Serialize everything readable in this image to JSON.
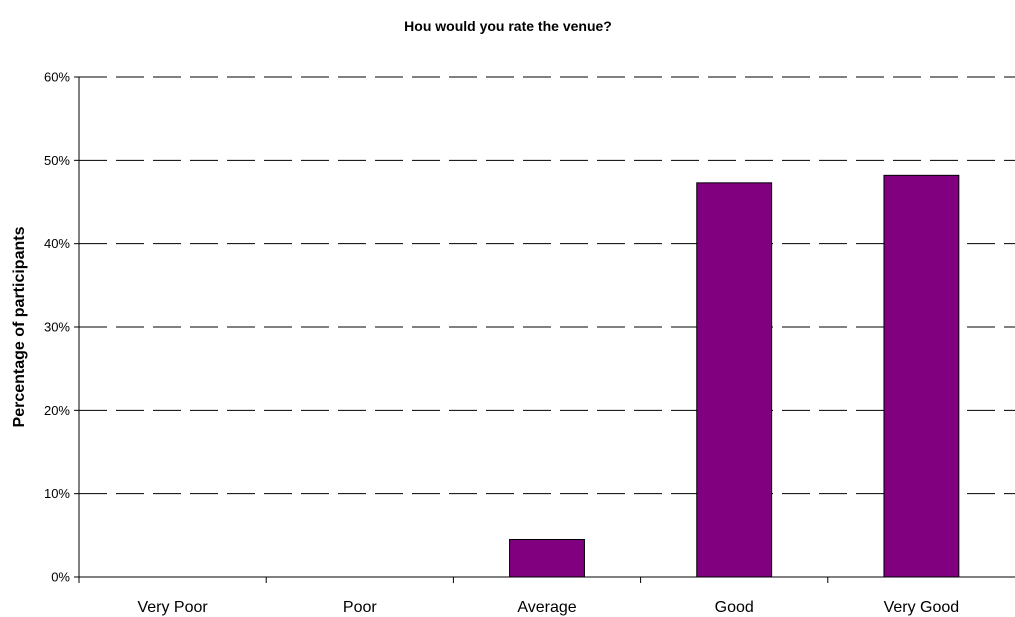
{
  "chart_data": {
    "type": "bar",
    "title": "Hou would you rate the venue?",
    "xlabel": "",
    "ylabel": "Percentage of participants",
    "categories": [
      "Very Poor",
      "Poor",
      "Average",
      "Good",
      "Very Good"
    ],
    "values": [
      0,
      0,
      4.5,
      47.3,
      48.2
    ],
    "ylim": [
      0,
      60
    ],
    "yticks": [
      "0%",
      "10%",
      "20%",
      "30%",
      "40%",
      "50%",
      "60%"
    ],
    "grid": true,
    "legend": "none",
    "colors": {
      "bar": "#800080",
      "grid": "#000000"
    }
  }
}
